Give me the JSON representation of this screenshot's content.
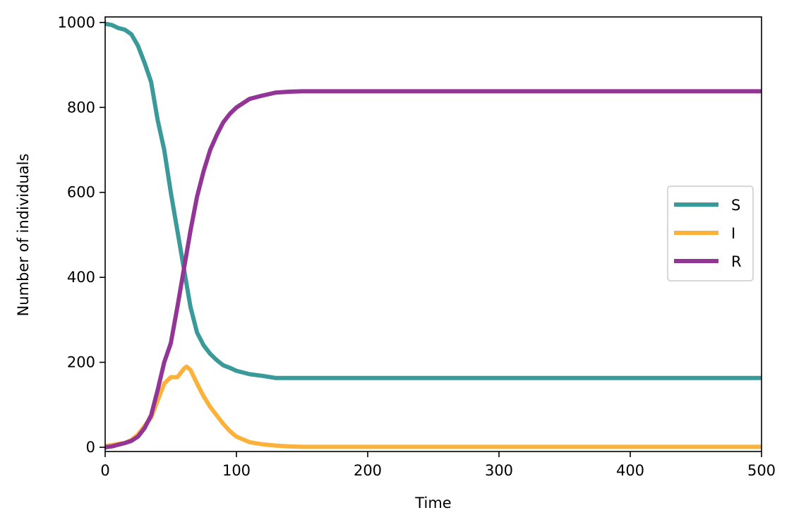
{
  "chart_data": {
    "type": "line",
    "title": "",
    "xlabel": "Time",
    "ylabel": "Number of individuals",
    "xlim": [
      0,
      500
    ],
    "ylim": [
      -10,
      1013
    ],
    "xticks": [
      0,
      100,
      200,
      300,
      400,
      500
    ],
    "yticks": [
      0,
      200,
      400,
      600,
      800,
      1000
    ],
    "grid": false,
    "legend_position": "center-right",
    "series": [
      {
        "name": "S",
        "color": "#3a9999",
        "x": [
          0,
          5,
          10,
          15,
          20,
          25,
          30,
          35,
          40,
          45,
          50,
          55,
          60,
          65,
          70,
          75,
          80,
          85,
          90,
          95,
          100,
          110,
          120,
          130,
          140,
          150,
          200,
          300,
          400,
          500
        ],
        "y": [
          997,
          994,
          987,
          983,
          972,
          945,
          905,
          860,
          770,
          700,
          600,
          510,
          420,
          330,
          270,
          240,
          220,
          205,
          193,
          187,
          180,
          172,
          168,
          163,
          163,
          163,
          163,
          163,
          163,
          163
        ]
      },
      {
        "name": "I",
        "color": "#fcb23a",
        "x": [
          0,
          5,
          10,
          15,
          20,
          25,
          30,
          35,
          40,
          45,
          50,
          55,
          60,
          62,
          65,
          70,
          75,
          80,
          85,
          90,
          95,
          100,
          110,
          120,
          130,
          140,
          150,
          200,
          300,
          400,
          500
        ],
        "y": [
          3,
          5,
          8,
          10,
          17,
          30,
          50,
          70,
          110,
          150,
          165,
          165,
          185,
          190,
          182,
          150,
          120,
          95,
          75,
          55,
          38,
          25,
          12,
          7,
          4,
          2,
          1,
          1,
          1,
          1,
          1
        ]
      },
      {
        "name": "R",
        "color": "#933597",
        "x": [
          0,
          5,
          10,
          15,
          20,
          25,
          30,
          35,
          40,
          45,
          50,
          55,
          60,
          65,
          70,
          75,
          80,
          85,
          90,
          95,
          100,
          110,
          120,
          130,
          140,
          150,
          200,
          300,
          400,
          500
        ],
        "y": [
          0,
          2,
          6,
          10,
          15,
          25,
          45,
          75,
          135,
          200,
          245,
          330,
          420,
          510,
          590,
          650,
          700,
          735,
          765,
          785,
          800,
          820,
          828,
          835,
          837,
          838,
          838,
          838,
          838,
          838
        ]
      }
    ]
  }
}
